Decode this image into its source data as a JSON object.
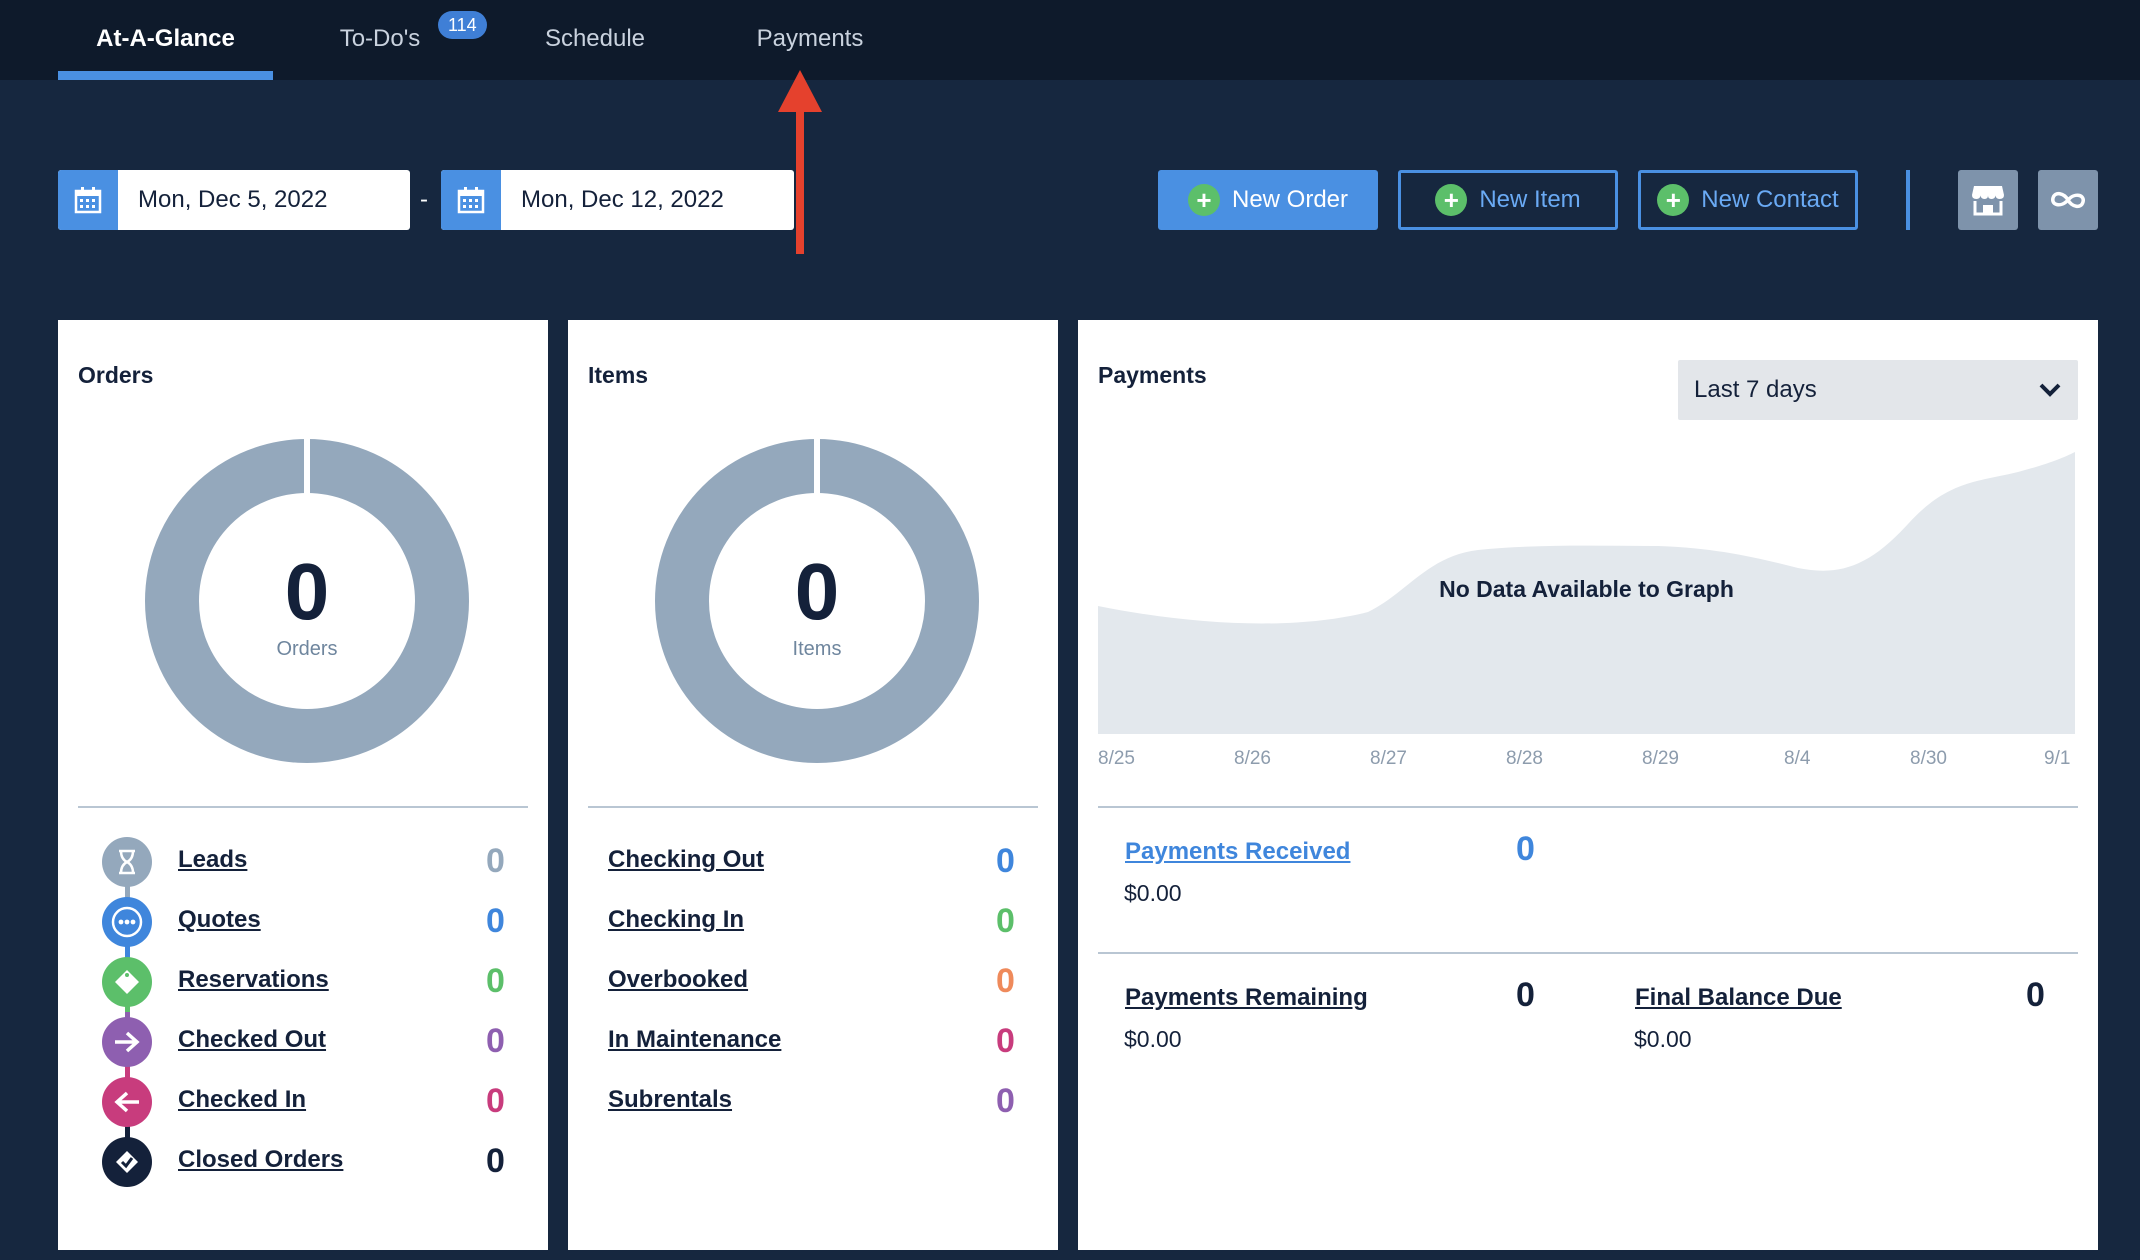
{
  "nav": {
    "tabs": [
      {
        "label": "At-A-Glance",
        "active": true
      },
      {
        "label": "To-Do's",
        "badge": "114"
      },
      {
        "label": "Schedule"
      },
      {
        "label": "Payments"
      }
    ]
  },
  "date_range": {
    "start": "Mon, Dec 5, 2022",
    "separator": "-",
    "end": "Mon, Dec 12, 2022"
  },
  "actions": {
    "new_order": "New Order",
    "new_item": "New Item",
    "new_contact": "New Contact",
    "store_icon": "store-icon",
    "link_icon": "infinity-link-icon"
  },
  "orders": {
    "title": "Orders",
    "count": "0",
    "count_label": "Orders",
    "rows": [
      {
        "label": "Leads",
        "value": "0",
        "color": "#94a8bc",
        "icon": "hourglass-icon"
      },
      {
        "label": "Quotes",
        "value": "0",
        "color": "#3f86dc",
        "icon": "ellipsis-icon"
      },
      {
        "label": "Reservations",
        "value": "0",
        "color": "#5cbf6a",
        "icon": "tag-icon"
      },
      {
        "label": "Checked Out",
        "value": "0",
        "color": "#8e5fb0",
        "icon": "arrow-right-icon"
      },
      {
        "label": "Checked In",
        "value": "0",
        "color": "#c83c7d",
        "icon": "arrow-left-icon"
      },
      {
        "label": "Closed Orders",
        "value": "0",
        "color": "#14213a",
        "icon": "closed-order-icon"
      }
    ]
  },
  "items": {
    "title": "Items",
    "count": "0",
    "count_label": "Items",
    "rows": [
      {
        "label": "Checking Out",
        "value": "0",
        "color": "#3f86dc"
      },
      {
        "label": "Checking In",
        "value": "0",
        "color": "#5cbf6a"
      },
      {
        "label": "Overbooked",
        "value": "0",
        "color": "#ef8a5b"
      },
      {
        "label": "In Maintenance",
        "value": "0",
        "color": "#c83c7d"
      },
      {
        "label": "Subrentals",
        "value": "0",
        "color": "#8e5fb0"
      }
    ]
  },
  "payments": {
    "title": "Payments",
    "range_select": "Last 7 days",
    "no_data": "No Data Available to Graph",
    "x_ticks": [
      "8/25",
      "8/26",
      "8/27",
      "8/28",
      "8/29",
      "8/4",
      "8/30",
      "9/1"
    ],
    "received": {
      "label": "Payments Received",
      "count": "0",
      "amount": "$0.00"
    },
    "remaining": {
      "label": "Payments Remaining",
      "count": "0",
      "amount": "$0.00"
    },
    "final": {
      "label": "Final Balance Due",
      "count": "0",
      "amount": "$0.00"
    }
  }
}
